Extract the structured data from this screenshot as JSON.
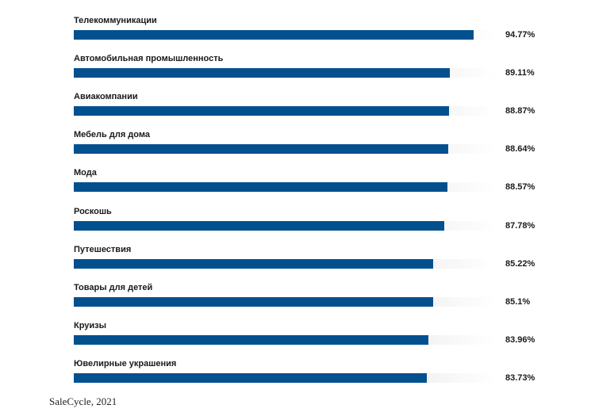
{
  "chart_data": {
    "type": "bar",
    "orientation": "horizontal",
    "categories": [
      "Телекоммуникации",
      "Автомобильная промышленность",
      "Авиакомпании",
      "Мебель для дома",
      "Мода",
      "Роскошь",
      "Путешествия",
      "Товары для детей",
      "Круизы",
      "Ювелирные украшения"
    ],
    "values": [
      94.77,
      89.11,
      88.87,
      88.64,
      88.57,
      87.78,
      85.22,
      85.1,
      83.96,
      83.73
    ],
    "value_labels": [
      "94.77%",
      "89.11%",
      "88.87%",
      "88.64%",
      "88.57%",
      "87.78%",
      "85.22%",
      "85.1%",
      "83.96%",
      "83.73%"
    ],
    "xlim": [
      0,
      100
    ],
    "unit": "%",
    "grid": false,
    "legend": "none"
  },
  "colors": {
    "bar": "#03508f",
    "track": "#f4f4f4"
  },
  "source": "SaleCycle, 2021"
}
